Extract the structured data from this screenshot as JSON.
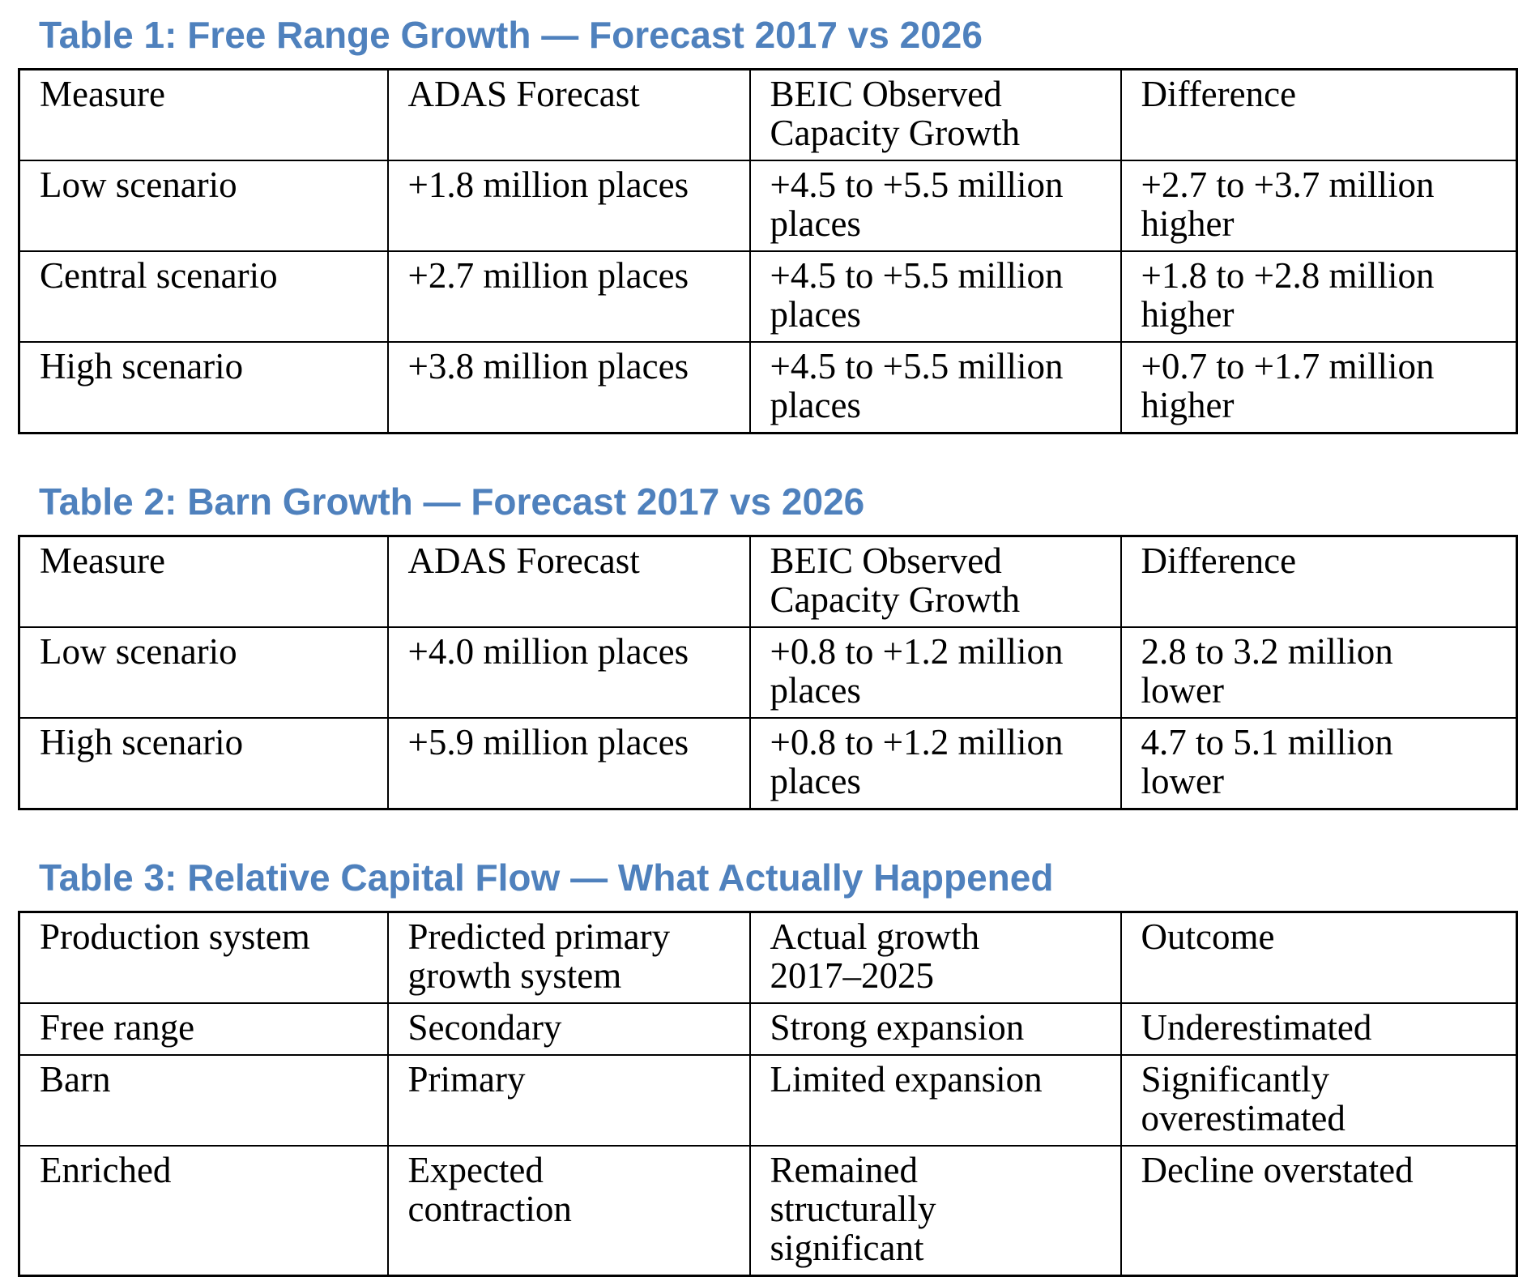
{
  "page": {
    "background": "#ffffff",
    "title_color": "#4F81BD",
    "border_color": "#000000",
    "text_color": "#000000"
  },
  "tables": [
    {
      "title": "Table 1: Free Range Growth — Forecast 2017 vs 2026",
      "columns": [
        "Measure",
        "ADAS Forecast",
        "BEIC Observed\nCapacity Growth",
        "Difference"
      ],
      "rows": [
        [
          "Low scenario",
          "+1.8 million places",
          "+4.5 to +5.5 million\nplaces",
          "+2.7 to +3.7 million\nhigher"
        ],
        [
          "Central scenario",
          "+2.7 million places",
          "+4.5 to +5.5 million\nplaces",
          "+1.8 to +2.8 million\nhigher"
        ],
        [
          "High scenario",
          "+3.8 million places",
          "+4.5 to +5.5 million\nplaces",
          "+0.7 to +1.7 million\nhigher"
        ]
      ]
    },
    {
      "title": "Table 2: Barn Growth — Forecast 2017 vs 2026",
      "columns": [
        "Measure",
        "ADAS Forecast",
        "BEIC Observed\nCapacity Growth",
        "Difference"
      ],
      "rows": [
        [
          "Low scenario",
          "+4.0 million places",
          "+0.8 to +1.2 million\nplaces",
          "2.8 to 3.2 million\nlower"
        ],
        [
          "High scenario",
          "+5.9 million places",
          "+0.8 to +1.2 million\nplaces",
          "4.7 to 5.1 million\nlower"
        ]
      ]
    },
    {
      "title": "Table 3: Relative Capital Flow — What Actually Happened",
      "columns": [
        "Production system",
        "Predicted primary\ngrowth system",
        "Actual growth\n2017–2025",
        "Outcome"
      ],
      "rows": [
        [
          "Free range",
          "Secondary",
          "Strong expansion",
          "Underestimated"
        ],
        [
          "Barn",
          "Primary",
          "Limited expansion",
          "Significantly\noverestimated"
        ],
        [
          "Enriched",
          "Expected\ncontraction",
          "Remained\nstructurally\nsignificant",
          "Decline overstated"
        ]
      ]
    }
  ]
}
